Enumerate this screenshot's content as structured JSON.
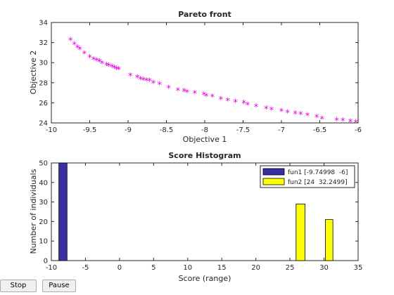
{
  "chart_data": [
    {
      "type": "scatter",
      "title": "Pareto front",
      "xlabel": "Objective 1",
      "ylabel": "Objective 2",
      "xlim": [
        -10,
        -6
      ],
      "ylim": [
        24,
        34
      ],
      "xticks": [
        "-10",
        "-9.5",
        "-9",
        "-8.5",
        "-8",
        "-7.5",
        "-7",
        "-6.5",
        "-6"
      ],
      "yticks": [
        "24",
        "26",
        "28",
        "30",
        "32",
        "34"
      ],
      "marker": "*",
      "color": "#e000e0",
      "grid": false,
      "x": [
        -9.75,
        -9.7,
        -9.66,
        -9.63,
        -9.57,
        -9.5,
        -9.45,
        -9.41,
        -9.37,
        -9.34,
        -9.28,
        -9.25,
        -9.21,
        -9.18,
        -9.15,
        -9.12,
        -8.97,
        -8.88,
        -8.84,
        -8.8,
        -8.76,
        -8.72,
        -8.67,
        -8.59,
        -8.47,
        -8.35,
        -8.27,
        -8.23,
        -8.13,
        -8.01,
        -7.98,
        -7.9,
        -7.79,
        -7.7,
        -7.6,
        -7.49,
        -7.44,
        -7.33,
        -7.2,
        -7.13,
        -7.0,
        -6.92,
        -6.82,
        -6.75,
        -6.66,
        -6.54,
        -6.47,
        -6.28,
        -6.2,
        -6.1,
        -6.03
      ],
      "y": [
        32.2,
        31.8,
        31.5,
        31.3,
        30.9,
        30.5,
        30.3,
        30.2,
        30.1,
        29.9,
        29.75,
        29.65,
        29.55,
        29.45,
        29.35,
        29.3,
        28.7,
        28.5,
        28.35,
        28.25,
        28.2,
        28.15,
        27.95,
        27.8,
        27.45,
        27.2,
        27.15,
        27.05,
        26.95,
        26.8,
        26.65,
        26.6,
        26.35,
        26.2,
        26.05,
        25.95,
        25.8,
        25.6,
        25.4,
        25.3,
        25.15,
        25.0,
        24.9,
        24.85,
        24.75,
        24.55,
        24.4,
        24.25,
        24.2,
        24.1,
        24.05
      ]
    },
    {
      "type": "bar",
      "title": "Score Histogram",
      "xlabel": "Score (range)",
      "ylabel": "Number of individuals",
      "xlim": [
        -10,
        35
      ],
      "ylim": [
        0,
        50
      ],
      "xticks": [
        "-10",
        "-5",
        "0",
        "5",
        "10",
        "15",
        "20",
        "25",
        "30",
        "35"
      ],
      "yticks": [
        "0",
        "10",
        "20",
        "30",
        "40",
        "50"
      ],
      "legend_position": "top-right",
      "series": [
        {
          "name": "fun1 [-9.74998  -6]",
          "color": "#3a2fa0",
          "bars": [
            {
              "x_start": -8.9,
              "x_end": -7.7,
              "value": 50
            }
          ]
        },
        {
          "name": "fun2 [24  32.2499]",
          "color": "#ffff00",
          "bars": [
            {
              "x_start": 25.9,
              "x_end": 27.2,
              "value": 29
            },
            {
              "x_start": 30.2,
              "x_end": 31.3,
              "value": 21
            }
          ]
        }
      ]
    }
  ],
  "buttons": {
    "stop_label": "Stop",
    "pause_label": "Pause"
  }
}
